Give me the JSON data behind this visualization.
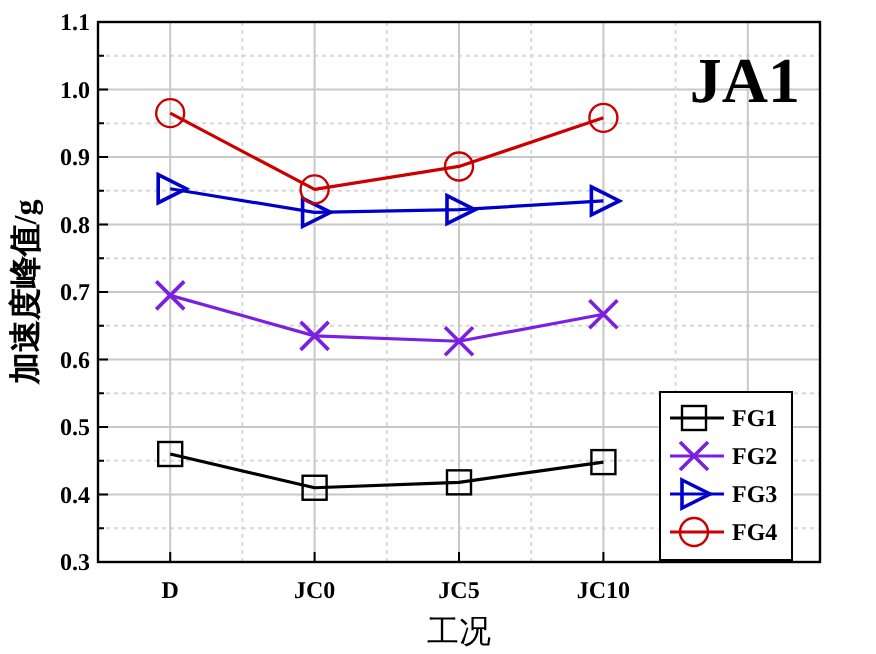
{
  "chart_data": {
    "type": "line",
    "title": "JA1",
    "xlabel": "工况",
    "ylabel": "加速度峰值/g",
    "categories": [
      "D",
      "JC0",
      "JC5",
      "JC10"
    ],
    "series": [
      {
        "name": "FG1",
        "color": "#000000",
        "marker": "square",
        "values": [
          0.46,
          0.41,
          0.418,
          0.448
        ]
      },
      {
        "name": "FG2",
        "color": "#7b1fe0",
        "marker": "cross",
        "values": [
          0.695,
          0.635,
          0.627,
          0.667
        ]
      },
      {
        "name": "FG3",
        "color": "#0000cc",
        "marker": "triangle",
        "values": [
          0.853,
          0.818,
          0.822,
          0.835
        ]
      },
      {
        "name": "FG4",
        "color": "#cc0000",
        "marker": "circle",
        "values": [
          0.965,
          0.852,
          0.886,
          0.958
        ]
      }
    ],
    "ylim": [
      0.3,
      1.1
    ],
    "yticks": [
      0.3,
      {
        "value": 0.35,
        "label": null
      },
      0.4,
      {
        "value": 0.45,
        "label": null
      },
      0.5,
      {
        "value": 0.55,
        "label": null
      },
      0.6,
      {
        "value": 0.65,
        "label": null
      },
      0.7,
      {
        "value": 0.75,
        "label": null
      },
      0.8,
      {
        "value": 0.85,
        "label": null
      },
      0.9,
      {
        "value": 0.95,
        "label": null
      },
      {
        "value": 1,
        "label": "1.0"
      },
      {
        "value": 1.05,
        "label": null
      },
      1.1
    ],
    "grid": true,
    "legend": "right",
    "line_style": "solid"
  }
}
